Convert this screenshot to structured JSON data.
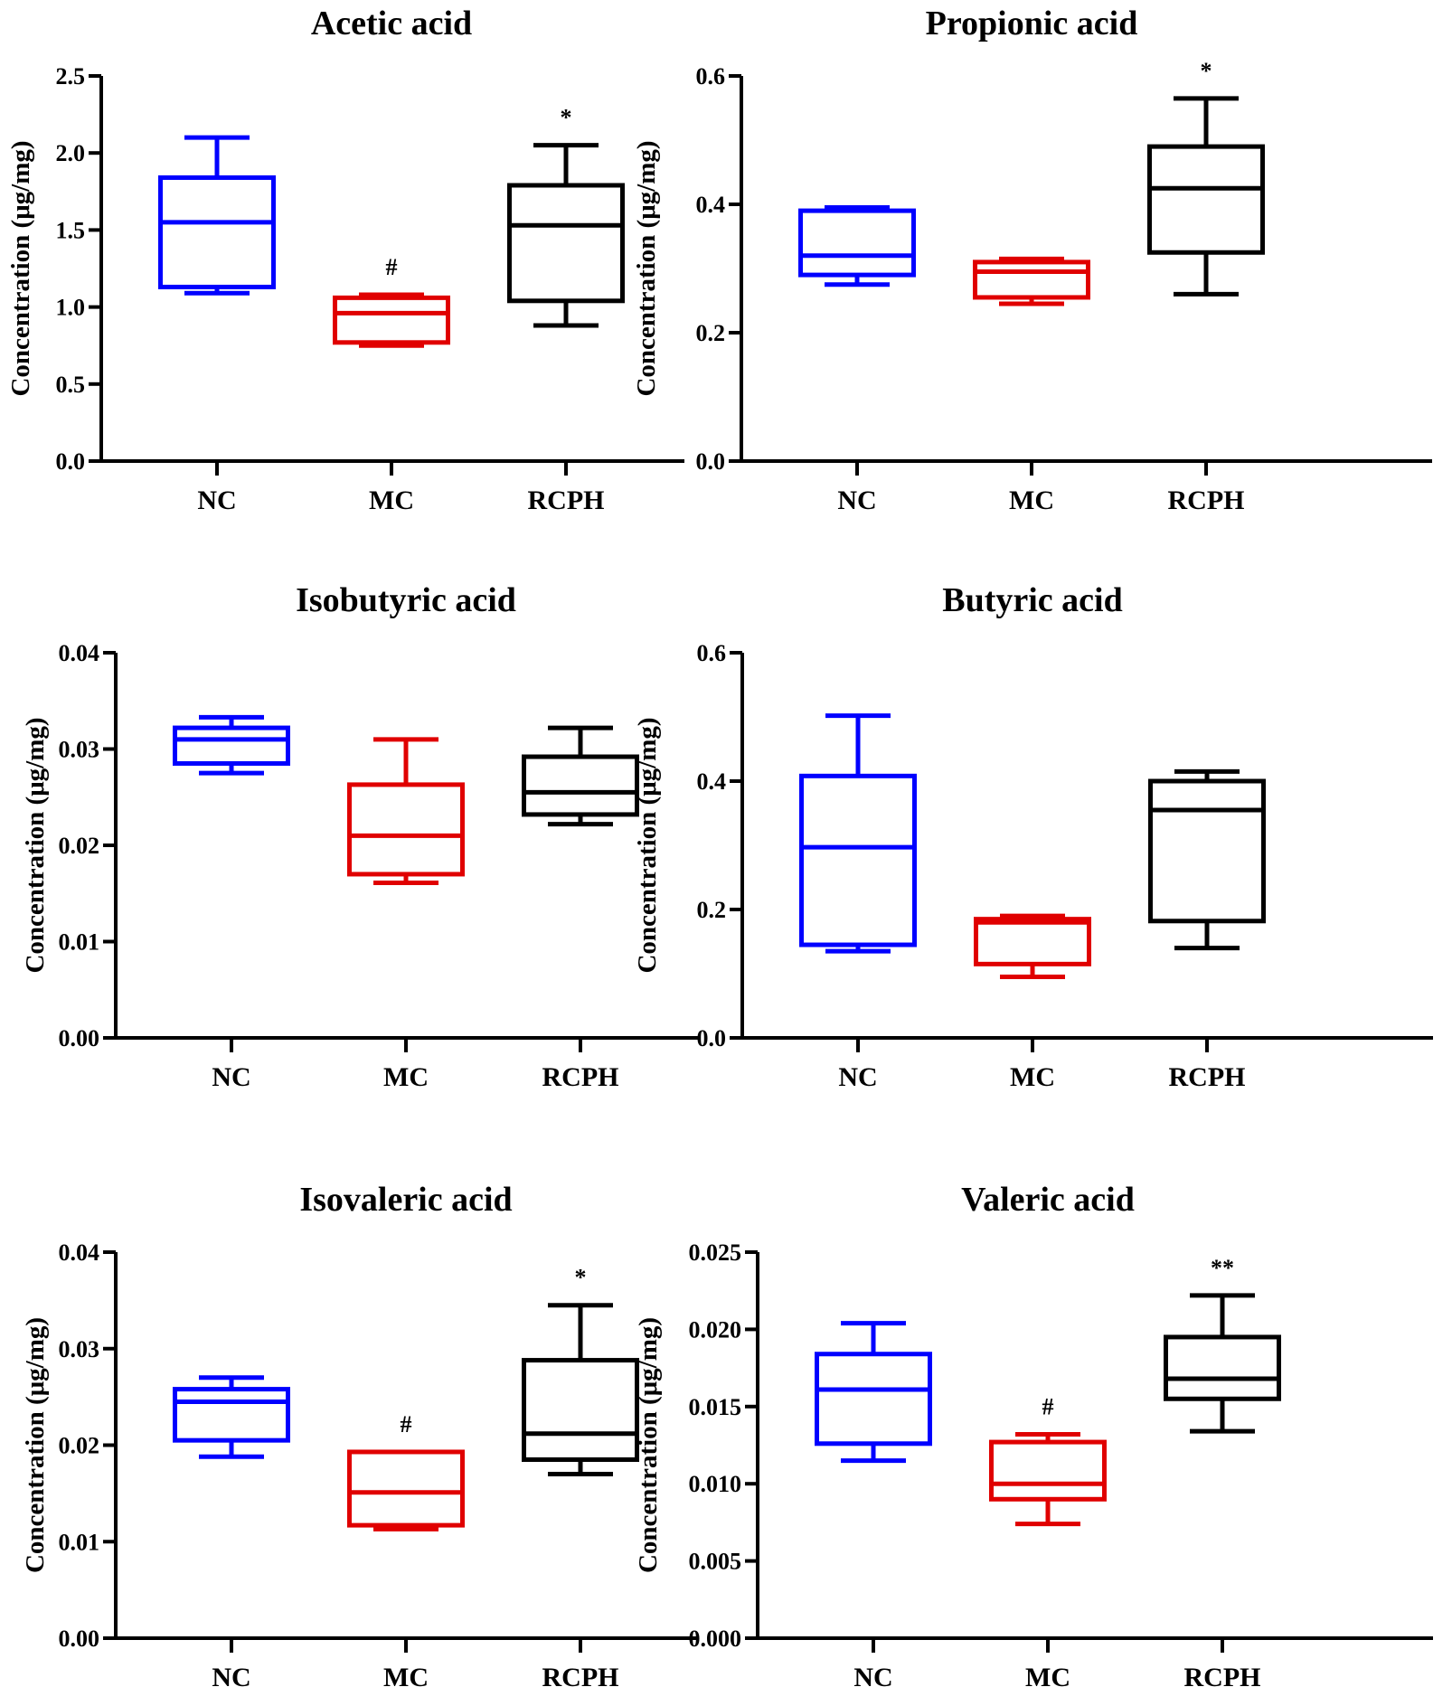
{
  "chart_data": [
    {
      "type": "box",
      "title": "Acetic acid",
      "ylabel": "Concentration (μg/mg)",
      "categories": [
        "NC",
        "MC",
        "RCPH"
      ],
      "ylim": [
        0,
        2.5
      ],
      "yticks": [
        "0.0",
        "0.5",
        "1.0",
        "1.5",
        "2.0",
        "2.5"
      ],
      "ytick_values": [
        0,
        0.5,
        1.0,
        1.5,
        2.0,
        2.5
      ],
      "series": [
        {
          "name": "NC",
          "color": "#0000ff",
          "min": 1.09,
          "q1": 1.13,
          "median": 1.55,
          "q3": 1.84,
          "max": 2.1,
          "annotation": ""
        },
        {
          "name": "MC",
          "color": "#e00000",
          "min": 0.75,
          "q1": 0.77,
          "median": 0.96,
          "q3": 1.06,
          "max": 1.08,
          "annotation": "#"
        },
        {
          "name": "RCPH",
          "color": "#000000",
          "min": 0.88,
          "q1": 1.04,
          "median": 1.53,
          "q3": 1.79,
          "max": 2.05,
          "annotation": "*"
        }
      ]
    },
    {
      "type": "box",
      "title": "Propionic acid",
      "ylabel": "Concentration (μg/mg)",
      "categories": [
        "NC",
        "MC",
        "RCPH"
      ],
      "ylim": [
        0,
        0.6
      ],
      "yticks": [
        "0.0",
        "0.2",
        "0.4",
        "0.6"
      ],
      "ytick_values": [
        0,
        0.2,
        0.4,
        0.6
      ],
      "series": [
        {
          "name": "NC",
          "color": "#0000ff",
          "min": 0.275,
          "q1": 0.29,
          "median": 0.32,
          "q3": 0.39,
          "max": 0.395,
          "annotation": ""
        },
        {
          "name": "MC",
          "color": "#e00000",
          "min": 0.245,
          "q1": 0.255,
          "median": 0.295,
          "q3": 0.31,
          "max": 0.315,
          "annotation": ""
        },
        {
          "name": "RCPH",
          "color": "#000000",
          "min": 0.26,
          "q1": 0.325,
          "median": 0.425,
          "q3": 0.49,
          "max": 0.565,
          "annotation": "*"
        }
      ]
    },
    {
      "type": "box",
      "title": "Isobutyric acid",
      "ylabel": "Concentration (μg/mg)",
      "categories": [
        "NC",
        "MC",
        "RCPH"
      ],
      "ylim": [
        0,
        0.04
      ],
      "yticks": [
        "0.00",
        "0.01",
        "0.02",
        "0.03",
        "0.04"
      ],
      "ytick_values": [
        0,
        0.01,
        0.02,
        0.03,
        0.04
      ],
      "series": [
        {
          "name": "NC",
          "color": "#0000ff",
          "min": 0.0275,
          "q1": 0.0285,
          "median": 0.031,
          "q3": 0.0322,
          "max": 0.0333,
          "annotation": ""
        },
        {
          "name": "MC",
          "color": "#e00000",
          "min": 0.0161,
          "q1": 0.017,
          "median": 0.021,
          "q3": 0.0263,
          "max": 0.031,
          "annotation": ""
        },
        {
          "name": "RCPH",
          "color": "#000000",
          "min": 0.0222,
          "q1": 0.0232,
          "median": 0.0255,
          "q3": 0.0292,
          "max": 0.0322,
          "annotation": ""
        }
      ]
    },
    {
      "type": "box",
      "title": "Butyric acid",
      "ylabel": "Concentration (μg/mg)",
      "categories": [
        "NC",
        "MC",
        "RCPH"
      ],
      "ylim": [
        0,
        0.6
      ],
      "yticks": [
        "0.0",
        "0.2",
        "0.4",
        "0.6"
      ],
      "ytick_values": [
        0,
        0.2,
        0.4,
        0.6
      ],
      "series": [
        {
          "name": "NC",
          "color": "#0000ff",
          "min": 0.135,
          "q1": 0.145,
          "median": 0.297,
          "q3": 0.408,
          "max": 0.502,
          "annotation": ""
        },
        {
          "name": "MC",
          "color": "#e00000",
          "min": 0.095,
          "q1": 0.115,
          "median": 0.18,
          "q3": 0.185,
          "max": 0.19,
          "annotation": ""
        },
        {
          "name": "RCPH",
          "color": "#000000",
          "min": 0.14,
          "q1": 0.182,
          "median": 0.355,
          "q3": 0.4,
          "max": 0.415,
          "annotation": ""
        }
      ]
    },
    {
      "type": "box",
      "title": "Isovaleric acid",
      "ylabel": "Concentration (μg/mg)",
      "categories": [
        "NC",
        "MC",
        "RCPH"
      ],
      "ylim": [
        0,
        0.04
      ],
      "yticks": [
        "0.00",
        "0.01",
        "0.02",
        "0.03",
        "0.04"
      ],
      "ytick_values": [
        0,
        0.01,
        0.02,
        0.03,
        0.04
      ],
      "series": [
        {
          "name": "NC",
          "color": "#0000ff",
          "min": 0.0188,
          "q1": 0.0205,
          "median": 0.0245,
          "q3": 0.0258,
          "max": 0.027,
          "annotation": ""
        },
        {
          "name": "MC",
          "color": "#e00000",
          "min": 0.0113,
          "q1": 0.0117,
          "median": 0.0151,
          "q3": 0.0193,
          "max": 0.0193,
          "annotation": "#"
        },
        {
          "name": "RCPH",
          "color": "#000000",
          "min": 0.017,
          "q1": 0.0185,
          "median": 0.0212,
          "q3": 0.0288,
          "max": 0.0345,
          "annotation": "*"
        }
      ]
    },
    {
      "type": "box",
      "title": "Valeric acid",
      "ylabel": "Concentration (μg/mg)",
      "categories": [
        "NC",
        "MC",
        "RCPH"
      ],
      "ylim": [
        0,
        0.025
      ],
      "yticks": [
        "0.000",
        "0.005",
        "0.010",
        "0.015",
        "0.020",
        "0.025"
      ],
      "ytick_values": [
        0,
        0.005,
        0.01,
        0.015,
        0.02,
        0.025
      ],
      "series": [
        {
          "name": "NC",
          "color": "#0000ff",
          "min": 0.0115,
          "q1": 0.0126,
          "median": 0.0161,
          "q3": 0.0184,
          "max": 0.0204,
          "annotation": ""
        },
        {
          "name": "MC",
          "color": "#e00000",
          "min": 0.0074,
          "q1": 0.009,
          "median": 0.01,
          "q3": 0.0127,
          "max": 0.0132,
          "annotation": "#"
        },
        {
          "name": "RCPH",
          "color": "#000000",
          "min": 0.0134,
          "q1": 0.0155,
          "median": 0.0168,
          "q3": 0.0195,
          "max": 0.0222,
          "annotation": "**"
        }
      ]
    }
  ]
}
